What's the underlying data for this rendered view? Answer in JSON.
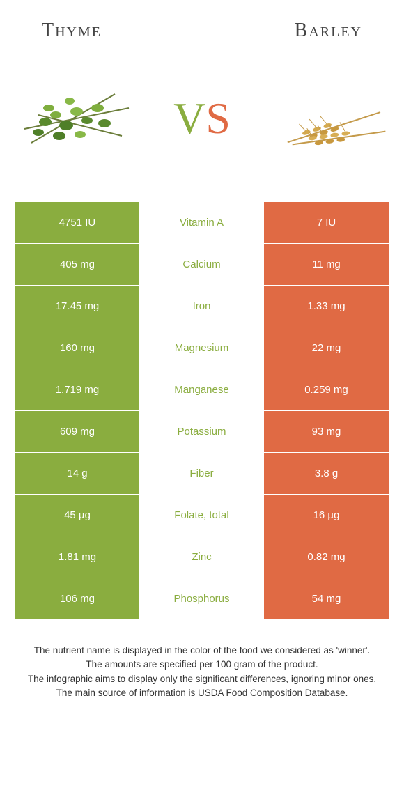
{
  "header": {
    "left_title": "Thyme",
    "right_title": "Barley"
  },
  "vs": {
    "v": "V",
    "s": "S"
  },
  "colors": {
    "left_bg": "#8aad3f",
    "right_bg": "#e06a44",
    "mid_bg": "#ffffff",
    "row_border": "#ffffff"
  },
  "table": {
    "rows": [
      {
        "left": "4751 IU",
        "mid": "Vitamin A",
        "right": "7 IU",
        "winner": "left"
      },
      {
        "left": "405 mg",
        "mid": "Calcium",
        "right": "11 mg",
        "winner": "left"
      },
      {
        "left": "17.45 mg",
        "mid": "Iron",
        "right": "1.33 mg",
        "winner": "left"
      },
      {
        "left": "160 mg",
        "mid": "Magnesium",
        "right": "22 mg",
        "winner": "left"
      },
      {
        "left": "1.719 mg",
        "mid": "Manganese",
        "right": "0.259 mg",
        "winner": "left"
      },
      {
        "left": "609 mg",
        "mid": "Potassium",
        "right": "93 mg",
        "winner": "left"
      },
      {
        "left": "14 g",
        "mid": "Fiber",
        "right": "3.8 g",
        "winner": "left"
      },
      {
        "left": "45 µg",
        "mid": "Folate, total",
        "right": "16 µg",
        "winner": "left"
      },
      {
        "left": "1.81 mg",
        "mid": "Zinc",
        "right": "0.82 mg",
        "winner": "left"
      },
      {
        "left": "106 mg",
        "mid": "Phosphorus",
        "right": "54 mg",
        "winner": "left"
      }
    ]
  },
  "footer": {
    "line1": "The nutrient name is displayed in the color of the food we considered as 'winner'.",
    "line2": "The amounts are specified per 100 gram of the product.",
    "line3": "The infographic aims to display only the significant differences, ignoring minor ones.",
    "line4": "The main source of information is USDA Food Composition Database."
  }
}
